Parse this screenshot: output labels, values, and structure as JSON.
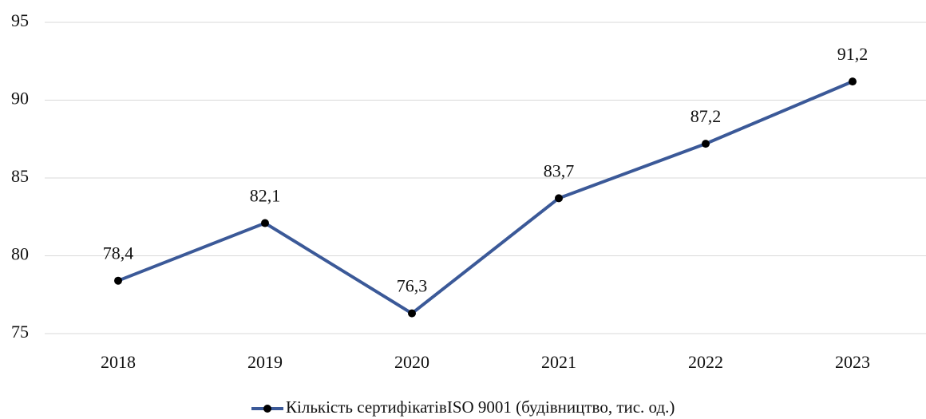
{
  "chart_data": {
    "type": "line",
    "categories": [
      "2018",
      "2019",
      "2020",
      "2021",
      "2022",
      "2023"
    ],
    "series": [
      {
        "name": "Кількість сертифікатівISO 9001 (будівництво, тис. од.)",
        "color": "#3b5998",
        "values": [
          78.4,
          82.1,
          76.3,
          83.7,
          87.2,
          91.2
        ],
        "value_labels": [
          "78,4",
          "82,1",
          "76,3",
          "83,7",
          "87,2",
          "91,2"
        ]
      }
    ],
    "ylim": [
      75,
      95
    ],
    "yticks": [
      75,
      80,
      85,
      90,
      95
    ],
    "grid": true,
    "legend": "bottom"
  }
}
